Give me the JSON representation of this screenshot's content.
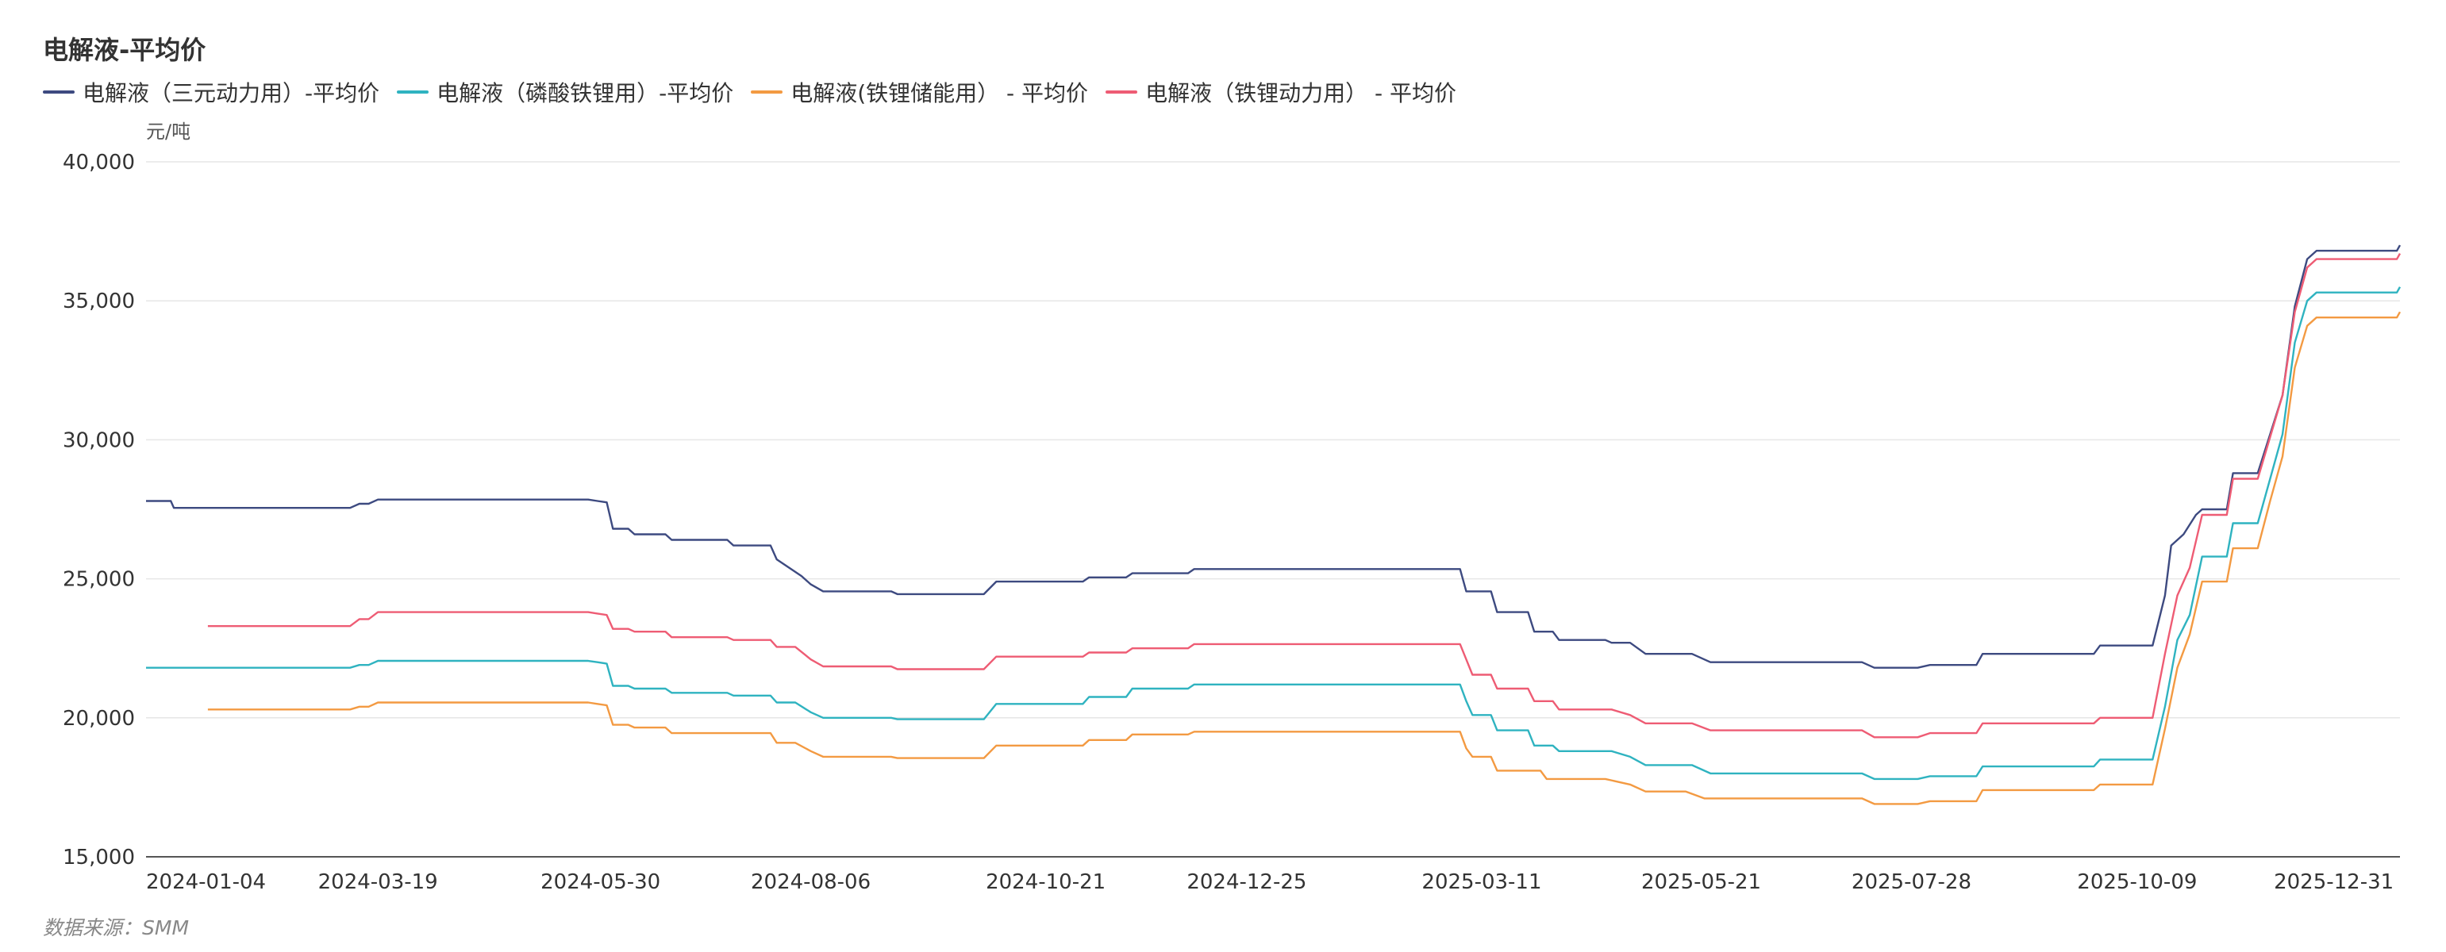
{
  "chart_data": {
    "type": "line",
    "title": "电解液-平均价",
    "ylabel": "元/吨",
    "source": "数据来源：SMM",
    "ylim": [
      15000,
      40000
    ],
    "yticks": [
      "15,000",
      "20,000",
      "25,000",
      "30,000",
      "35,000",
      "40,000"
    ],
    "yticks_values": [
      15000,
      20000,
      25000,
      30000,
      35000,
      40000
    ],
    "xlim": [
      "2024-01-04",
      "2026-01-02"
    ],
    "xticks": [
      "2024-01-04",
      "2024-03-19",
      "2024-05-30",
      "2024-08-06",
      "2024-10-21",
      "2024-12-25",
      "2025-03-11",
      "2025-05-21",
      "2025-07-28",
      "2025-10-09",
      "2025-12-31"
    ],
    "grid": "horizontal",
    "legend_position": "top-left",
    "series": [
      {
        "name": "电解液（三元动力用）-平均价",
        "color": "#3d4a80",
        "points": [
          [
            "2024-01-04",
            27800
          ],
          [
            "2024-01-12",
            27800
          ],
          [
            "2024-01-13",
            27550
          ],
          [
            "2024-03-10",
            27550
          ],
          [
            "2024-03-13",
            27700
          ],
          [
            "2024-03-16",
            27700
          ],
          [
            "2024-03-19",
            27850
          ],
          [
            "2024-05-26",
            27850
          ],
          [
            "2024-05-29",
            27800
          ],
          [
            "2024-06-01",
            27750
          ],
          [
            "2024-06-03",
            26800
          ],
          [
            "2024-06-08",
            26800
          ],
          [
            "2024-06-10",
            26600
          ],
          [
            "2024-06-20",
            26600
          ],
          [
            "2024-06-22",
            26400
          ],
          [
            "2024-07-10",
            26400
          ],
          [
            "2024-07-12",
            26200
          ],
          [
            "2024-07-24",
            26200
          ],
          [
            "2024-07-26",
            25700
          ],
          [
            "2024-07-30",
            25400
          ],
          [
            "2024-08-03",
            25100
          ],
          [
            "2024-08-06",
            24800
          ],
          [
            "2024-08-10",
            24550
          ],
          [
            "2024-09-01",
            24550
          ],
          [
            "2024-09-03",
            24450
          ],
          [
            "2024-10-01",
            24450
          ],
          [
            "2024-10-05",
            24900
          ],
          [
            "2024-11-02",
            24900
          ],
          [
            "2024-11-04",
            25050
          ],
          [
            "2024-11-16",
            25050
          ],
          [
            "2024-11-18",
            25200
          ],
          [
            "2024-12-06",
            25200
          ],
          [
            "2024-12-08",
            25350
          ],
          [
            "2025-03-04",
            25350
          ],
          [
            "2025-03-06",
            24550
          ],
          [
            "2025-03-14",
            24550
          ],
          [
            "2025-03-16",
            23800
          ],
          [
            "2025-03-26",
            23800
          ],
          [
            "2025-03-28",
            23100
          ],
          [
            "2025-04-03",
            23100
          ],
          [
            "2025-04-05",
            22800
          ],
          [
            "2025-04-20",
            22800
          ],
          [
            "2025-04-22",
            22700
          ],
          [
            "2025-04-28",
            22700
          ],
          [
            "2025-05-03",
            22300
          ],
          [
            "2025-05-18",
            22300
          ],
          [
            "2025-05-24",
            22000
          ],
          [
            "2025-07-12",
            22000
          ],
          [
            "2025-07-16",
            21800
          ],
          [
            "2025-07-30",
            21800
          ],
          [
            "2025-08-03",
            21900
          ],
          [
            "2025-08-18",
            21900
          ],
          [
            "2025-08-20",
            22300
          ],
          [
            "2025-09-25",
            22300
          ],
          [
            "2025-09-27",
            22600
          ],
          [
            "2025-10-14",
            22600
          ],
          [
            "2025-10-18",
            24400
          ],
          [
            "2025-10-20",
            26200
          ],
          [
            "2025-10-24",
            26600
          ],
          [
            "2025-10-28",
            27300
          ],
          [
            "2025-10-30",
            27500
          ],
          [
            "2025-11-07",
            27500
          ],
          [
            "2025-11-09",
            28800
          ],
          [
            "2025-11-17",
            28800
          ],
          [
            "2025-11-21",
            30200
          ],
          [
            "2025-11-25",
            31600
          ],
          [
            "2025-11-29",
            34800
          ],
          [
            "2025-12-03",
            36500
          ],
          [
            "2025-12-06",
            36800
          ],
          [
            "2026-01-01",
            36800
          ],
          [
            "2026-01-02",
            37000
          ]
        ]
      },
      {
        "name": "电解液（磷酸铁锂用）-平均价",
        "color": "#2fb3c0",
        "points": [
          [
            "2024-01-04",
            21800
          ],
          [
            "2024-03-10",
            21800
          ],
          [
            "2024-03-13",
            21900
          ],
          [
            "2024-03-16",
            21900
          ],
          [
            "2024-03-19",
            22050
          ],
          [
            "2024-05-26",
            22050
          ],
          [
            "2024-05-29",
            22000
          ],
          [
            "2024-06-01",
            21950
          ],
          [
            "2024-06-03",
            21150
          ],
          [
            "2024-06-08",
            21150
          ],
          [
            "2024-06-10",
            21050
          ],
          [
            "2024-06-20",
            21050
          ],
          [
            "2024-06-22",
            20900
          ],
          [
            "2024-07-10",
            20900
          ],
          [
            "2024-07-12",
            20800
          ],
          [
            "2024-07-24",
            20800
          ],
          [
            "2024-07-26",
            20550
          ],
          [
            "2024-08-01",
            20550
          ],
          [
            "2024-08-06",
            20200
          ],
          [
            "2024-08-10",
            20000
          ],
          [
            "2024-09-01",
            20000
          ],
          [
            "2024-09-03",
            19950
          ],
          [
            "2024-10-01",
            19950
          ],
          [
            "2024-10-05",
            20500
          ],
          [
            "2024-11-02",
            20500
          ],
          [
            "2024-11-04",
            20750
          ],
          [
            "2024-11-16",
            20750
          ],
          [
            "2024-11-18",
            21050
          ],
          [
            "2024-12-06",
            21050
          ],
          [
            "2024-12-08",
            21200
          ],
          [
            "2025-03-04",
            21200
          ],
          [
            "2025-03-06",
            20600
          ],
          [
            "2025-03-08",
            20100
          ],
          [
            "2025-03-14",
            20100
          ],
          [
            "2025-03-16",
            19550
          ],
          [
            "2025-03-26",
            19550
          ],
          [
            "2025-03-28",
            19000
          ],
          [
            "2025-04-03",
            19000
          ],
          [
            "2025-04-05",
            18800
          ],
          [
            "2025-04-22",
            18800
          ],
          [
            "2025-04-28",
            18600
          ],
          [
            "2025-05-03",
            18300
          ],
          [
            "2025-05-18",
            18300
          ],
          [
            "2025-05-24",
            18000
          ],
          [
            "2025-07-12",
            18000
          ],
          [
            "2025-07-16",
            17800
          ],
          [
            "2025-07-30",
            17800
          ],
          [
            "2025-08-03",
            17900
          ],
          [
            "2025-08-18",
            17900
          ],
          [
            "2025-08-20",
            18250
          ],
          [
            "2025-09-25",
            18250
          ],
          [
            "2025-09-27",
            18500
          ],
          [
            "2025-10-14",
            18500
          ],
          [
            "2025-10-18",
            20400
          ],
          [
            "2025-10-22",
            22800
          ],
          [
            "2025-10-26",
            23700
          ],
          [
            "2025-10-30",
            25800
          ],
          [
            "2025-11-07",
            25800
          ],
          [
            "2025-11-09",
            27000
          ],
          [
            "2025-11-17",
            27000
          ],
          [
            "2025-11-21",
            28600
          ],
          [
            "2025-11-25",
            30200
          ],
          [
            "2025-11-29",
            33500
          ],
          [
            "2025-12-03",
            35000
          ],
          [
            "2025-12-06",
            35300
          ],
          [
            "2026-01-01",
            35300
          ],
          [
            "2026-01-02",
            35500
          ]
        ]
      },
      {
        "name": "电解液(铁锂储能用）  - 平均价",
        "color": "#f39a42",
        "points": [
          [
            "2024-01-24",
            20300
          ],
          [
            "2024-03-10",
            20300
          ],
          [
            "2024-03-13",
            20400
          ],
          [
            "2024-03-16",
            20400
          ],
          [
            "2024-03-19",
            20550
          ],
          [
            "2024-05-26",
            20550
          ],
          [
            "2024-05-29",
            20500
          ],
          [
            "2024-06-01",
            20450
          ],
          [
            "2024-06-03",
            19750
          ],
          [
            "2024-06-08",
            19750
          ],
          [
            "2024-06-10",
            19650
          ],
          [
            "2024-06-20",
            19650
          ],
          [
            "2024-06-22",
            19450
          ],
          [
            "2024-07-24",
            19450
          ],
          [
            "2024-07-26",
            19100
          ],
          [
            "2024-08-01",
            19100
          ],
          [
            "2024-08-06",
            18800
          ],
          [
            "2024-08-10",
            18600
          ],
          [
            "2024-09-01",
            18600
          ],
          [
            "2024-09-03",
            18550
          ],
          [
            "2024-10-01",
            18550
          ],
          [
            "2024-10-05",
            19000
          ],
          [
            "2024-11-02",
            19000
          ],
          [
            "2024-11-04",
            19200
          ],
          [
            "2024-11-16",
            19200
          ],
          [
            "2024-11-18",
            19400
          ],
          [
            "2024-12-06",
            19400
          ],
          [
            "2024-12-08",
            19500
          ],
          [
            "2025-03-04",
            19500
          ],
          [
            "2025-03-06",
            18900
          ],
          [
            "2025-03-08",
            18600
          ],
          [
            "2025-03-14",
            18600
          ],
          [
            "2025-03-16",
            18100
          ],
          [
            "2025-03-30",
            18100
          ],
          [
            "2025-04-01",
            17800
          ],
          [
            "2025-04-20",
            17800
          ],
          [
            "2025-04-28",
            17600
          ],
          [
            "2025-05-03",
            17350
          ],
          [
            "2025-05-16",
            17350
          ],
          [
            "2025-05-22",
            17100
          ],
          [
            "2025-07-12",
            17100
          ],
          [
            "2025-07-16",
            16900
          ],
          [
            "2025-07-30",
            16900
          ],
          [
            "2025-08-03",
            17000
          ],
          [
            "2025-08-18",
            17000
          ],
          [
            "2025-08-20",
            17400
          ],
          [
            "2025-09-25",
            17400
          ],
          [
            "2025-09-27",
            17600
          ],
          [
            "2025-10-14",
            17600
          ],
          [
            "2025-10-18",
            19600
          ],
          [
            "2025-10-22",
            21800
          ],
          [
            "2025-10-26",
            23000
          ],
          [
            "2025-10-30",
            24900
          ],
          [
            "2025-11-07",
            24900
          ],
          [
            "2025-11-09",
            26100
          ],
          [
            "2025-11-17",
            26100
          ],
          [
            "2025-11-21",
            27800
          ],
          [
            "2025-11-25",
            29400
          ],
          [
            "2025-11-29",
            32600
          ],
          [
            "2025-12-03",
            34100
          ],
          [
            "2025-12-06",
            34400
          ],
          [
            "2026-01-01",
            34400
          ],
          [
            "2026-01-02",
            34600
          ]
        ]
      },
      {
        "name": "电解液（铁锂动力用）  - 平均价",
        "color": "#ee5c74",
        "points": [
          [
            "2024-01-24",
            23300
          ],
          [
            "2024-03-10",
            23300
          ],
          [
            "2024-03-13",
            23550
          ],
          [
            "2024-03-16",
            23550
          ],
          [
            "2024-03-19",
            23800
          ],
          [
            "2024-05-26",
            23800
          ],
          [
            "2024-05-29",
            23750
          ],
          [
            "2024-06-01",
            23700
          ],
          [
            "2024-06-03",
            23200
          ],
          [
            "2024-06-08",
            23200
          ],
          [
            "2024-06-10",
            23100
          ],
          [
            "2024-06-20",
            23100
          ],
          [
            "2024-06-22",
            22900
          ],
          [
            "2024-07-10",
            22900
          ],
          [
            "2024-07-12",
            22800
          ],
          [
            "2024-07-24",
            22800
          ],
          [
            "2024-07-26",
            22550
          ],
          [
            "2024-08-01",
            22550
          ],
          [
            "2024-08-06",
            22100
          ],
          [
            "2024-08-10",
            21850
          ],
          [
            "2024-09-01",
            21850
          ],
          [
            "2024-09-03",
            21750
          ],
          [
            "2024-10-01",
            21750
          ],
          [
            "2024-10-05",
            22200
          ],
          [
            "2024-11-02",
            22200
          ],
          [
            "2024-11-04",
            22350
          ],
          [
            "2024-11-16",
            22350
          ],
          [
            "2024-11-18",
            22500
          ],
          [
            "2024-12-06",
            22500
          ],
          [
            "2024-12-08",
            22650
          ],
          [
            "2025-03-04",
            22650
          ],
          [
            "2025-03-06",
            22100
          ],
          [
            "2025-03-08",
            21550
          ],
          [
            "2025-03-14",
            21550
          ],
          [
            "2025-03-16",
            21050
          ],
          [
            "2025-03-26",
            21050
          ],
          [
            "2025-03-28",
            20600
          ],
          [
            "2025-04-03",
            20600
          ],
          [
            "2025-04-05",
            20300
          ],
          [
            "2025-04-22",
            20300
          ],
          [
            "2025-04-28",
            20100
          ],
          [
            "2025-05-03",
            19800
          ],
          [
            "2025-05-18",
            19800
          ],
          [
            "2025-05-24",
            19550
          ],
          [
            "2025-07-12",
            19550
          ],
          [
            "2025-07-16",
            19300
          ],
          [
            "2025-07-30",
            19300
          ],
          [
            "2025-08-03",
            19450
          ],
          [
            "2025-08-18",
            19450
          ],
          [
            "2025-08-20",
            19800
          ],
          [
            "2025-09-25",
            19800
          ],
          [
            "2025-09-27",
            20000
          ],
          [
            "2025-10-14",
            20000
          ],
          [
            "2025-10-18",
            22300
          ],
          [
            "2025-10-22",
            24400
          ],
          [
            "2025-10-26",
            25400
          ],
          [
            "2025-10-30",
            27300
          ],
          [
            "2025-11-07",
            27300
          ],
          [
            "2025-11-09",
            28600
          ],
          [
            "2025-11-17",
            28600
          ],
          [
            "2025-11-21",
            30100
          ],
          [
            "2025-11-25",
            31600
          ],
          [
            "2025-11-29",
            34600
          ],
          [
            "2025-12-03",
            36200
          ],
          [
            "2025-12-06",
            36500
          ],
          [
            "2026-01-01",
            36500
          ],
          [
            "2026-01-02",
            36700
          ]
        ]
      }
    ]
  }
}
